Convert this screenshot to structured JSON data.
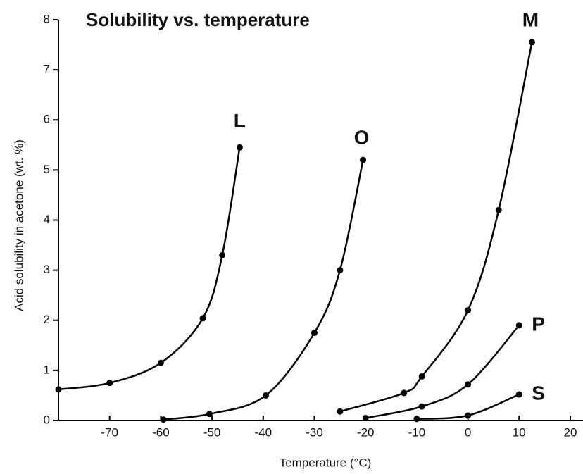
{
  "chart_data": {
    "type": "line",
    "title": "Solubility vs. temperature",
    "x_label": "Temperature (°C)",
    "y_label": "Acid solubility in acetone (wt. %)",
    "xlim": [
      -80,
      20
    ],
    "xticks": [
      -70,
      -60,
      -50,
      -40,
      -30,
      -20,
      -10,
      0,
      10,
      20
    ],
    "ylim": [
      0,
      8
    ],
    "yticks": [
      0,
      1,
      2,
      3,
      4,
      5,
      6,
      7,
      8
    ],
    "series": [
      {
        "name": "L",
        "color": "#000000",
        "x": [
          -80,
          -70,
          -60,
          -51.8,
          -48,
          -44.6
        ],
        "values": [
          0.62,
          0.75,
          1.15,
          2.04,
          3.3,
          5.45
        ]
      },
      {
        "name": "O",
        "color": "#000000",
        "x": [
          -59.5,
          -50.5,
          -39.5,
          -30,
          -25,
          -20.5
        ],
        "values": [
          0.02,
          0.13,
          0.5,
          1.75,
          3.0,
          5.2
        ]
      },
      {
        "name": "M",
        "color": "#000000",
        "x": [
          -25,
          -12.5,
          -9,
          0,
          6,
          12.5
        ],
        "values": [
          0.18,
          0.55,
          0.88,
          2.2,
          4.2,
          7.55
        ]
      },
      {
        "name": "P",
        "color": "#000000",
        "x": [
          -20,
          -9,
          0,
          10
        ],
        "values": [
          0.05,
          0.28,
          0.72,
          1.9
        ]
      },
      {
        "name": "S",
        "color": "#000000",
        "x": [
          -10,
          0,
          10
        ],
        "values": [
          0.03,
          0.1,
          0.52
        ]
      }
    ]
  }
}
